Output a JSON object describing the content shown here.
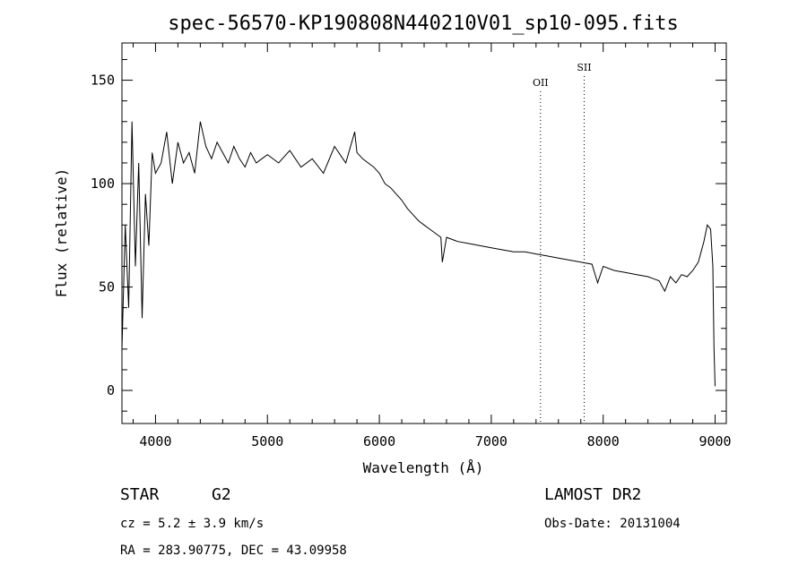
{
  "chart_data": {
    "type": "line",
    "title": "spec-56570-KP190808N440210V01_sp10-095.fits",
    "xlabel": "Wavelength (Å)",
    "ylabel": "Flux (relative)",
    "xlim": [
      3700,
      9100
    ],
    "ylim": [
      -16,
      168
    ],
    "x_ticks": [
      4000,
      5000,
      6000,
      7000,
      8000,
      9000
    ],
    "y_ticks": [
      0,
      50,
      100,
      150
    ],
    "series": [
      {
        "x": [
          3700,
          3730,
          3760,
          3790,
          3820,
          3850,
          3880,
          3910,
          3940,
          3970,
          4000,
          4050,
          4100,
          4150,
          4200,
          4250,
          4300,
          4350,
          4400,
          4450,
          4500,
          4550,
          4600,
          4650,
          4700,
          4750,
          4800,
          4850,
          4900,
          4950,
          5000,
          5100,
          5200,
          5300,
          5400,
          5500,
          5600,
          5700,
          5780,
          5800,
          5850,
          5900,
          5950,
          6000,
          6050,
          6100,
          6150,
          6200,
          6250,
          6300,
          6350,
          6400,
          6450,
          6500,
          6550,
          6563,
          6600,
          6650,
          6700,
          6800,
          6900,
          7000,
          7100,
          7200,
          7300,
          7400,
          7500,
          7600,
          7700,
          7800,
          7900,
          7950,
          8000,
          8100,
          8200,
          8300,
          8400,
          8450,
          8500,
          8550,
          8600,
          8650,
          8700,
          8750,
          8800,
          8850,
          8900,
          8930,
          8960,
          8980,
          8990,
          9000
        ],
        "y": [
          20,
          80,
          40,
          130,
          60,
          110,
          35,
          95,
          70,
          115,
          105,
          110,
          125,
          100,
          120,
          110,
          115,
          105,
          130,
          118,
          112,
          120,
          115,
          110,
          118,
          112,
          108,
          115,
          110,
          112,
          114,
          110,
          116,
          108,
          112,
          105,
          118,
          110,
          125,
          115,
          112,
          110,
          108,
          105,
          100,
          98,
          95,
          92,
          88,
          85,
          82,
          80,
          78,
          76,
          74,
          62,
          74,
          73,
          72,
          71,
          70,
          69,
          68,
          67,
          67,
          66,
          65,
          64,
          63,
          62,
          61,
          52,
          60,
          58,
          57,
          56,
          55,
          54,
          53,
          48,
          55,
          52,
          56,
          55,
          58,
          62,
          72,
          80,
          78,
          60,
          20,
          2
        ]
      }
    ],
    "lines": [
      {
        "label": "OII",
        "x": 7440
      },
      {
        "label": "SII",
        "x": 7830
      }
    ]
  },
  "info": {
    "object_type": "STAR",
    "subclass": "G2",
    "cz": "cz = 5.2 ± 3.9 km/s",
    "radec": "RA = 283.90775, DEC =  43.09958",
    "survey": "LAMOST DR2",
    "obs_date": "Obs-Date: 20131004"
  }
}
